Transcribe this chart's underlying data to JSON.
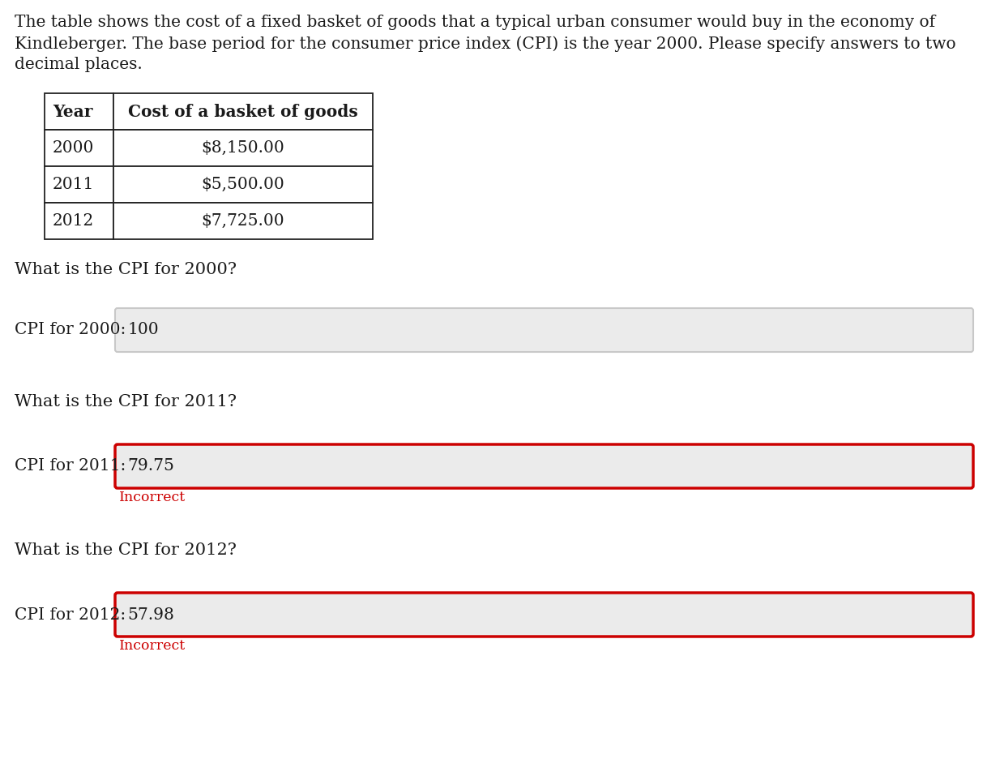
{
  "intro_line1": "The table shows the cost of a fixed basket of goods that a typical urban consumer would buy in the economy of",
  "intro_line2": "Kindleberger. The base period for the consumer price index (CPI) is the year 2000. Please specify answers to two",
  "intro_line3": "decimal places.",
  "table_headers": [
    "Year",
    "Cost of a basket of goods"
  ],
  "table_rows": [
    [
      "2000",
      "$8,150.00"
    ],
    [
      "2011",
      "$5,500.00"
    ],
    [
      "2012",
      "$7,725.00"
    ]
  ],
  "q1_text": "What is the CPI for 2000?",
  "q1_label": "CPI for 2000:",
  "q1_answer": "100",
  "q1_box_color": "#ebebeb",
  "q1_border_color": "#c8c8c8",
  "q2_text": "What is the CPI for 2011?",
  "q2_label": "CPI for 2011:",
  "q2_answer": "79.75",
  "q2_box_color": "#ebebeb",
  "q2_border_color": "#cc0000",
  "q2_incorrect": "Incorrect",
  "q3_text": "What is the CPI for 2012?",
  "q3_label": "CPI for 2012:",
  "q3_answer": "57.98",
  "q3_box_color": "#ebebeb",
  "q3_border_color": "#cc0000",
  "q3_incorrect": "Incorrect",
  "bg_color": "#ffffff",
  "text_color": "#1a1a1a",
  "incorrect_color": "#cc0000",
  "font_size_intro": 14.5,
  "font_size_table_header": 14.5,
  "font_size_table_data": 14.5,
  "font_size_question": 15,
  "font_size_label": 14.5,
  "font_size_answer": 14.5,
  "font_size_incorrect": 12.5
}
